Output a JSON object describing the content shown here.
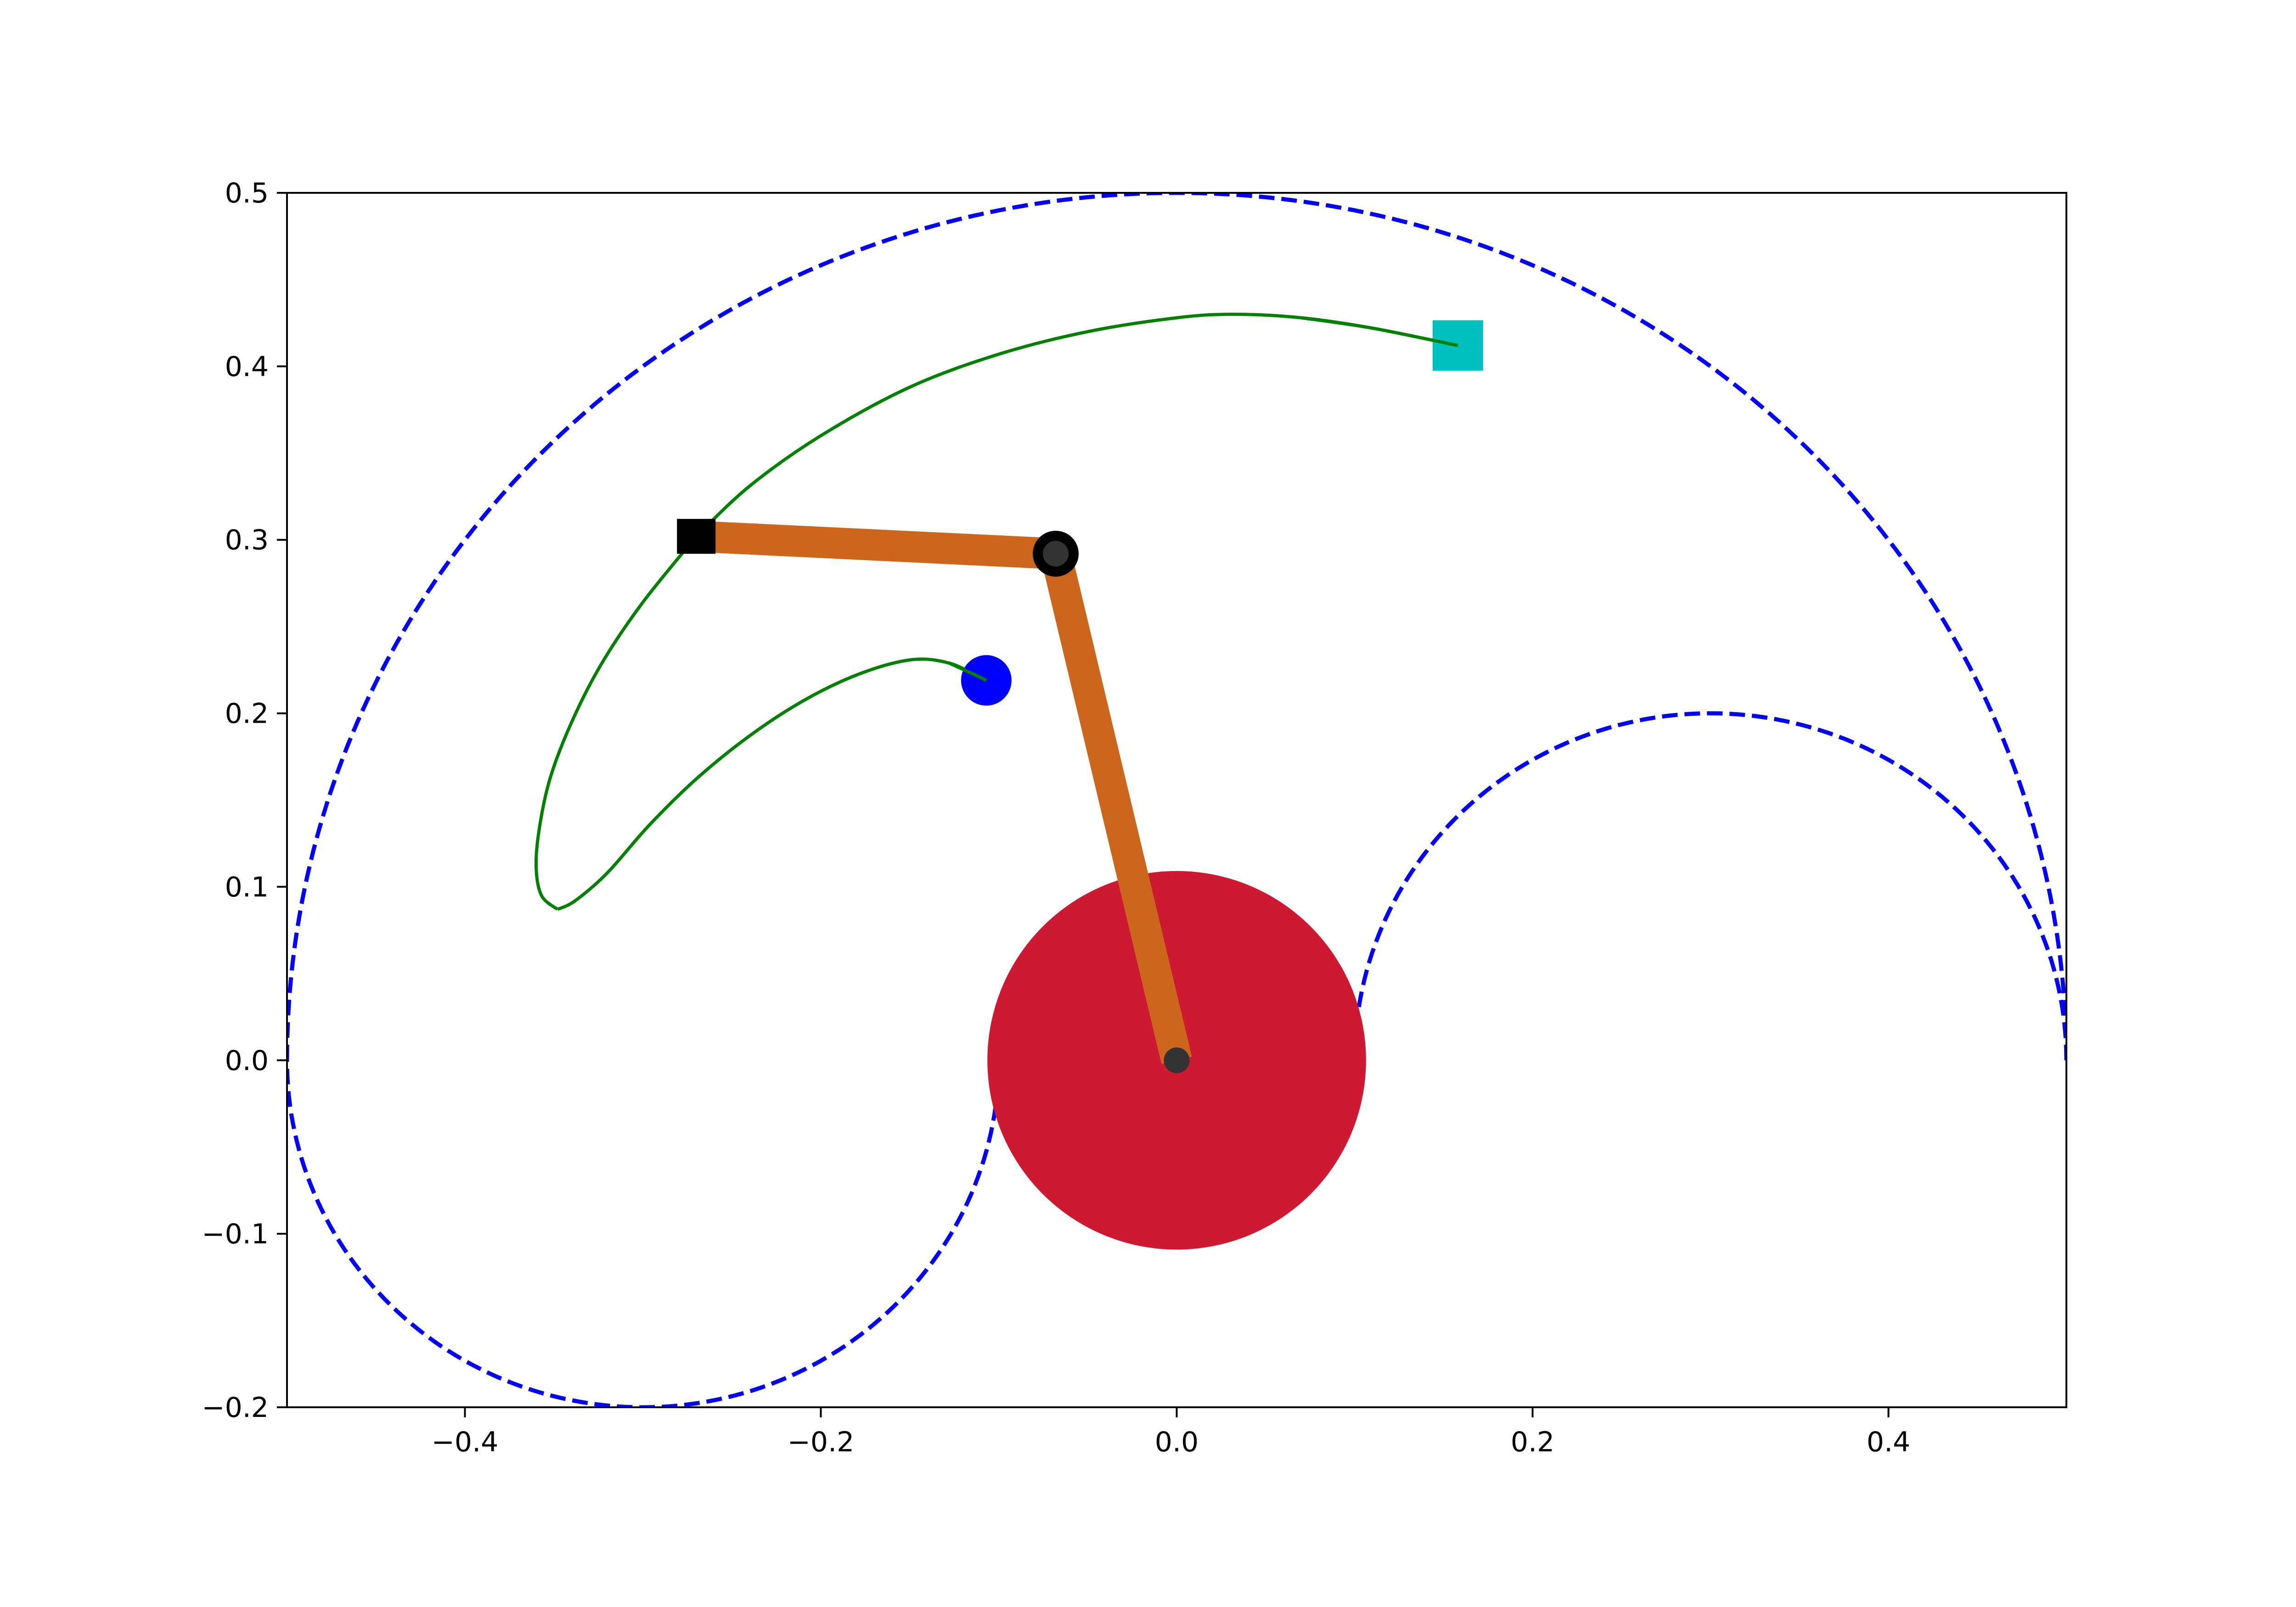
{
  "chart_data": {
    "type": "diagram",
    "xlim": [
      -0.5,
      0.5
    ],
    "ylim": [
      -0.2,
      0.5
    ],
    "x_ticks": [
      {
        "value": -0.4,
        "label": "−0.4"
      },
      {
        "value": -0.2,
        "label": "−0.2"
      },
      {
        "value": 0.0,
        "label": "0.0"
      },
      {
        "value": 0.2,
        "label": "0.2"
      },
      {
        "value": 0.4,
        "label": "0.4"
      }
    ],
    "y_ticks": [
      {
        "value": -0.2,
        "label": "−0.2"
      },
      {
        "value": -0.1,
        "label": "−0.1"
      },
      {
        "value": 0.0,
        "label": "0.0"
      },
      {
        "value": 0.1,
        "label": "0.1"
      },
      {
        "value": 0.2,
        "label": "0.2"
      },
      {
        "value": 0.3,
        "label": "0.3"
      },
      {
        "value": 0.4,
        "label": "0.4"
      },
      {
        "value": 0.5,
        "label": "0.5"
      }
    ],
    "grid": false,
    "colors": {
      "workspace": "#0000ff",
      "trajectory": "#008000",
      "link": "#cd661d",
      "base": "#cd1a32",
      "joint": "#333333",
      "joint_ring": "#000000",
      "goal": "#00bfbf",
      "obstacle": "#0000ff",
      "end_effector": "#000000"
    },
    "workspace_boundary": {
      "outer_radius": 0.5,
      "inner_radius": 0.1,
      "elbow_radius": 0.2,
      "elbow_center": [
        0.3,
        0.0
      ],
      "lower_loop_center": [
        -0.3,
        0.0
      ]
    },
    "arm": {
      "base": [
        0.0,
        0.0
      ],
      "elbow": [
        -0.068,
        0.292
      ],
      "end_effector": [
        -0.27,
        0.302
      ]
    },
    "base_block": {
      "x_range": [
        -0.052,
        0.052
      ],
      "y_range": [
        -0.052,
        0.002
      ],
      "dome_radius": 0.028
    },
    "goal": [
      0.158,
      0.412
    ],
    "obstacle": [
      -0.107,
      0.219
    ],
    "trajectory_upper": [
      [
        -0.27,
        0.302
      ],
      [
        -0.3,
        0.264
      ],
      [
        -0.323,
        0.229
      ],
      [
        -0.34,
        0.195
      ],
      [
        -0.352,
        0.163
      ],
      [
        -0.358,
        0.135
      ],
      [
        -0.36,
        0.112
      ],
      [
        -0.357,
        0.095
      ],
      [
        -0.348,
        0.087
      ]
    ],
    "trajectory_upper_to_goal": [
      [
        -0.27,
        0.302
      ],
      [
        -0.24,
        0.331
      ],
      [
        -0.2,
        0.36
      ],
      [
        -0.15,
        0.388
      ],
      [
        -0.1,
        0.407
      ],
      [
        -0.05,
        0.42
      ],
      [
        0.0,
        0.428
      ],
      [
        0.032,
        0.43
      ],
      [
        0.07,
        0.428
      ],
      [
        0.11,
        0.422
      ],
      [
        0.158,
        0.412
      ]
    ],
    "trajectory_lower": [
      [
        -0.348,
        0.087
      ],
      [
        -0.338,
        0.092
      ],
      [
        -0.32,
        0.108
      ],
      [
        -0.296,
        0.136
      ],
      [
        -0.268,
        0.164
      ],
      [
        -0.236,
        0.19
      ],
      [
        -0.205,
        0.21
      ],
      [
        -0.175,
        0.224
      ],
      [
        -0.148,
        0.231
      ],
      [
        -0.128,
        0.229
      ],
      [
        -0.113,
        0.222
      ],
      [
        -0.107,
        0.219
      ]
    ]
  }
}
